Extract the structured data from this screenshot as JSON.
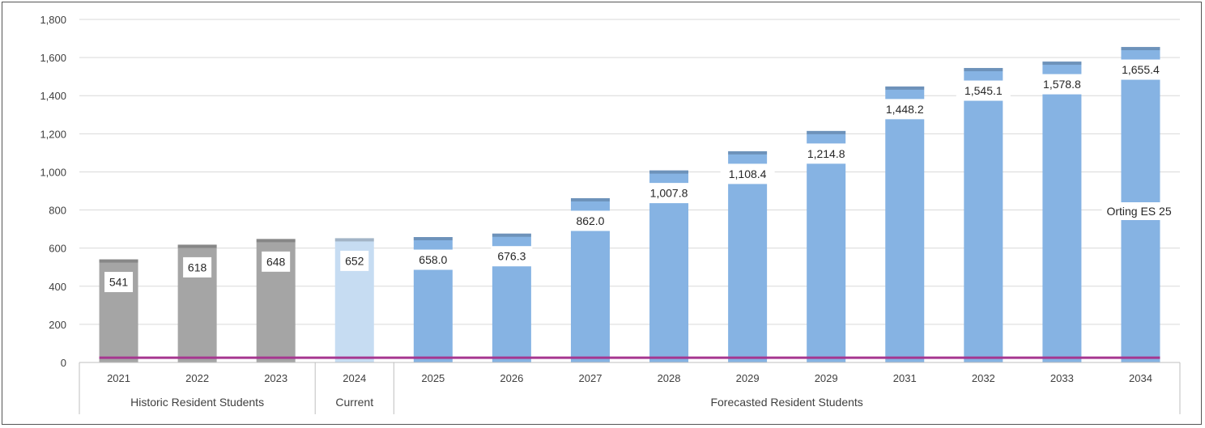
{
  "chart_data": {
    "type": "bar",
    "categories": [
      "2021",
      "2022",
      "2023",
      "2024",
      "2025",
      "2026",
      "2027",
      "2028",
      "2029",
      "2029",
      "2031",
      "2032",
      "2033",
      "2034"
    ],
    "values": [
      541,
      618,
      648,
      652,
      658.0,
      676.3,
      862.0,
      1007.8,
      1108.4,
      1214.8,
      1448.2,
      1545.1,
      1578.8,
      1655.4
    ],
    "data_labels": [
      "541",
      "618",
      "648",
      "652",
      "658.0",
      "676.3",
      "862.0",
      "1,007.8",
      "1,108.4",
      "1,214.8",
      "1,448.2",
      "1,545.1",
      "1,578.8",
      "1,655.4"
    ],
    "groups": [
      {
        "label": "Historic Resident Students",
        "categories": [
          "2021",
          "2022",
          "2023"
        ],
        "color": "#a5a5a5"
      },
      {
        "label": "Current",
        "categories": [
          "2024"
        ],
        "color": "#c6dcf2"
      },
      {
        "label": "Forecasted Resident Students",
        "categories": [
          "2025",
          "2026",
          "2027",
          "2028",
          "2029",
          "2029",
          "2031",
          "2032",
          "2033",
          "2034"
        ],
        "color": "#86b3e3"
      }
    ],
    "series": [
      {
        "name": "Orting ES 25",
        "type": "line",
        "values": [
          25,
          25,
          25,
          25,
          25,
          25,
          25,
          25,
          25,
          25,
          25,
          25,
          25,
          25
        ],
        "color": "#a63790"
      }
    ],
    "y_ticks": [
      "0",
      "200",
      "400",
      "600",
      "800",
      "1,000",
      "1,200",
      "1,400",
      "1,600",
      "1,800"
    ],
    "ylim": [
      0,
      1800
    ],
    "grid": true,
    "title": "",
    "xlabel": "",
    "ylabel": ""
  }
}
